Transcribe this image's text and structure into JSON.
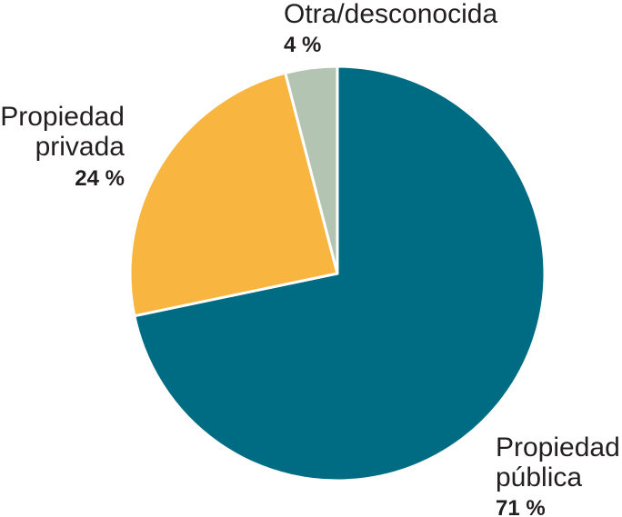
{
  "chart_data": {
    "type": "pie",
    "slices": [
      {
        "label_lines": [
          "Propiedad",
          "pública"
        ],
        "value": 71,
        "value_label": "71 %",
        "color": "#006c84"
      },
      {
        "label_lines": [
          "Propiedad",
          "privada"
        ],
        "value": 24,
        "value_label": "24 %",
        "color": "#f8b53f"
      },
      {
        "label_lines": [
          "Otra/desconocida"
        ],
        "value": 4,
        "value_label": "4 %",
        "color": "#b4c4b2"
      }
    ],
    "start": "12 o'clock",
    "direction": "clockwise",
    "separator_color": "#ffffff"
  }
}
